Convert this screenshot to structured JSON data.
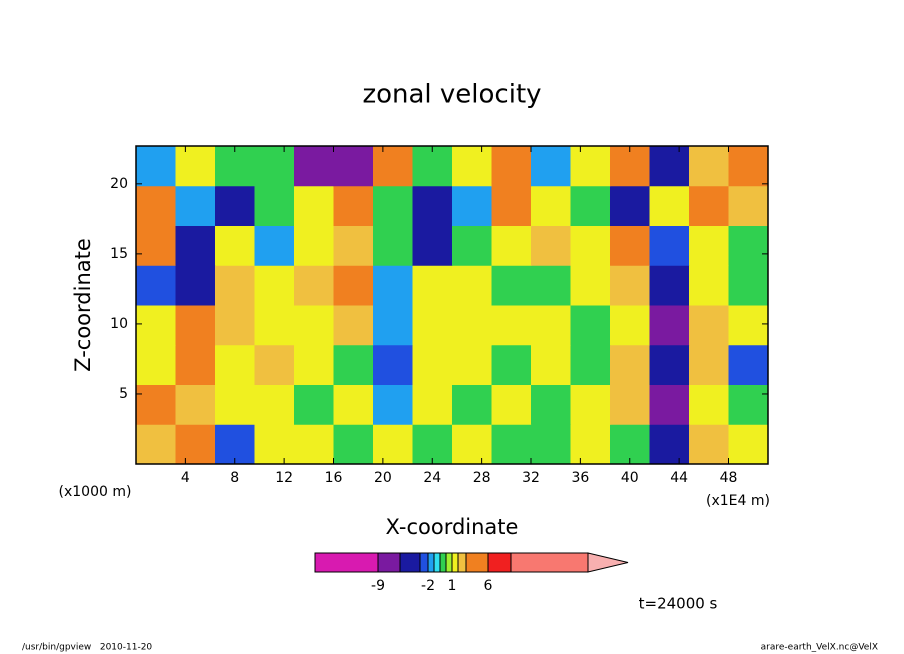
{
  "chart_data": {
    "type": "heatmap",
    "title": "zonal velocity",
    "x_label": "X-coordinate",
    "y_label": "Z-coordinate",
    "x_unit": "(x1E4 m)",
    "y_unit": "(x1000 m)",
    "xlim": [
      0,
      51.2
    ],
    "ylim": [
      0,
      22.7
    ],
    "xticks": [
      4,
      8,
      12,
      16,
      20,
      24,
      28,
      32,
      36,
      40,
      44,
      48
    ],
    "yticks": [
      5,
      10,
      15,
      20
    ],
    "values": [
      [
        2.5,
        4,
        -2.5,
        1.5,
        1.5,
        0.3,
        1.5,
        0.3,
        1.5,
        0.3,
        0.3,
        1.5,
        0.3,
        -4,
        2.5,
        1.5
      ],
      [
        4,
        2.5,
        1.5,
        1.5,
        0.3,
        1.5,
        -1.5,
        1.5,
        0.3,
        1.5,
        0.3,
        1.5,
        2.5,
        -7,
        1.5,
        0.3
      ],
      [
        1.5,
        4,
        1.5,
        2.5,
        1.5,
        0.3,
        -2.5,
        1.5,
        1.5,
        0.3,
        1.5,
        0.3,
        2.5,
        -4,
        2.5,
        -2.5
      ],
      [
        1.5,
        4,
        2.5,
        1.5,
        1.5,
        2.5,
        -1.5,
        1.5,
        1.5,
        1.5,
        1.5,
        0.3,
        1.5,
        -7,
        2.5,
        1.5
      ],
      [
        -2.5,
        -4,
        2.5,
        1.5,
        2.5,
        4,
        -1.5,
        1.5,
        1.5,
        0.3,
        0.3,
        1.5,
        2.5,
        -4,
        1.5,
        0.3
      ],
      [
        4,
        -4,
        1.5,
        -1.5,
        1.5,
        2.5,
        0.3,
        -4,
        0.3,
        1.5,
        2.5,
        1.5,
        4,
        -2.5,
        1.5,
        0.3
      ],
      [
        4,
        -1.5,
        -4,
        0.3,
        1.5,
        4,
        0.3,
        -4,
        -1.5,
        4,
        1.5,
        0.3,
        -4,
        1.5,
        4,
        2.5
      ],
      [
        -1.5,
        1.5,
        0.3,
        0.3,
        -7,
        -7,
        4,
        0.3,
        1.5,
        4,
        -1.5,
        1.5,
        4,
        -4,
        2.5,
        4
      ]
    ],
    "colorbar": {
      "levels": [
        -9,
        -6,
        -3,
        -2,
        -1,
        0,
        0.5,
        1,
        2,
        3,
        6,
        9
      ],
      "colors": [
        "#d81ab0",
        "#7a1aa0",
        "#1a1aa0",
        "#2050e0",
        "#20a0f0",
        "#30e0f0",
        "#30d050",
        "#a0f030",
        "#f0f020",
        "#f0c040",
        "#f08020",
        "#f02020",
        "#f87870"
      ],
      "extend_color": "#f8b0b0",
      "ticks": [
        -9,
        -2,
        1,
        6
      ]
    },
    "annotation": "t=24000 s",
    "footer_left": "/usr/bin/gpview   2010-11-20",
    "footer_right": "arare-earth_VelX.nc@VelX"
  }
}
